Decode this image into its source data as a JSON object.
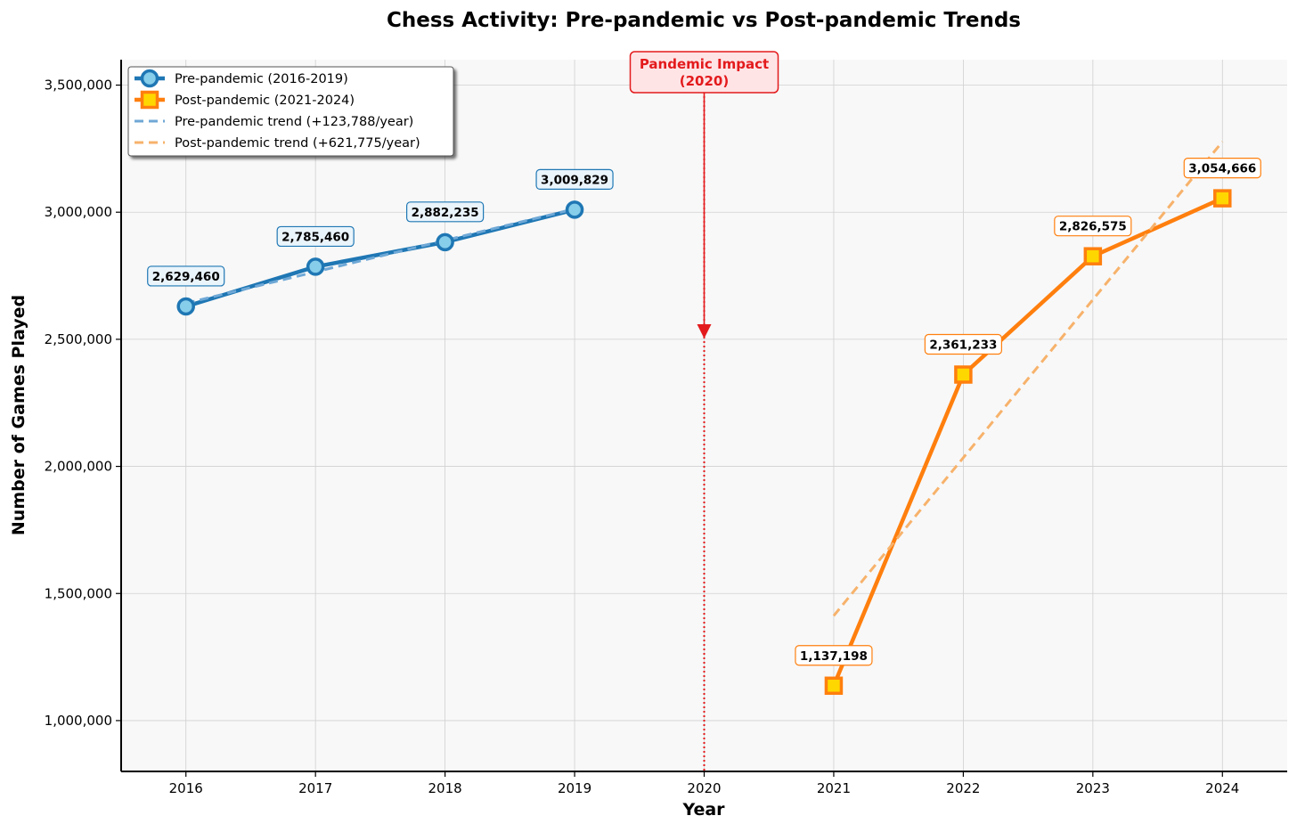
{
  "chart_data": {
    "type": "line",
    "title": "Chess Activity: Pre-pandemic vs Post-pandemic Trends",
    "xlabel": "Year",
    "ylabel": "Number of Games Played",
    "x_ticks": [
      "2016",
      "2017",
      "2018",
      "2019",
      "2020",
      "2021",
      "2022",
      "2023",
      "2024"
    ],
    "y_ticks": [
      "1,000,000",
      "1,500,000",
      "2,000,000",
      "2,500,000",
      "3,000,000",
      "3,500,000"
    ],
    "y_tick_values": [
      1000000,
      1500000,
      2000000,
      2500000,
      3000000,
      3500000
    ],
    "xlim": [
      2015.5,
      2024.5
    ],
    "ylim": [
      800000,
      3600000
    ],
    "grid": true,
    "legend_position": "top-left",
    "series": [
      {
        "name": "Pre-pandemic (2016-2019)",
        "kind": "line-marker",
        "marker": "circle",
        "color": "#1f77b4",
        "marker_fill": "#87ceeb",
        "x": [
          2016,
          2017,
          2018,
          2019
        ],
        "y": [
          2629460,
          2785460,
          2882235,
          3009829
        ],
        "labels": [
          "2,629,460",
          "2,785,460",
          "2,882,235",
          "3,009,829"
        ]
      },
      {
        "name": "Post-pandemic (2021-2024)",
        "kind": "line-marker",
        "marker": "square",
        "color": "#ff7f0e",
        "marker_fill": "#ffd700",
        "x": [
          2021,
          2022,
          2023,
          2024
        ],
        "y": [
          1137198,
          2361233,
          2826575,
          3054666
        ],
        "labels": [
          "1,137,198",
          "2,361,233",
          "2,826,575",
          "3,054,666"
        ]
      },
      {
        "name": "Pre-pandemic trend (+123,788/year)",
        "kind": "trend",
        "color": "#6fa8d6",
        "x": [
          2016,
          2019
        ],
        "y": [
          2641556,
          3012920
        ]
      },
      {
        "name": "Post-pandemic trend (+621,775/year)",
        "kind": "trend",
        "color": "#f7b26b",
        "x": [
          2021,
          2024
        ],
        "y": [
          1412255,
          3277580
        ]
      }
    ],
    "annotations": [
      {
        "text_line1": "Pandemic Impact",
        "text_line2": "(2020)",
        "x": 2020,
        "color": "#e31a1c"
      }
    ]
  }
}
